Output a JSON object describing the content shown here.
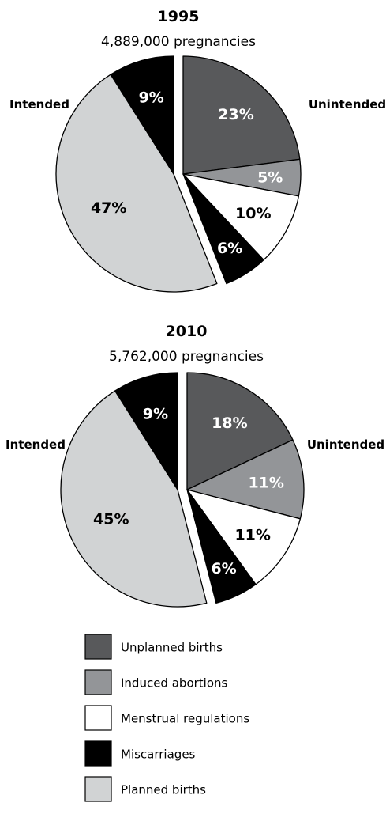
{
  "chart_data": [
    {
      "type": "pie",
      "title": "1995",
      "subtitle": "4,889,000 pregnancies",
      "group_labels": {
        "unintended": "Unintended",
        "intended": "Intended"
      },
      "slices": [
        {
          "category": "Unplanned births",
          "group": "unintended",
          "value": 23,
          "label": "23%"
        },
        {
          "category": "Induced abortions",
          "group": "unintended",
          "value": 5,
          "label": "5%"
        },
        {
          "category": "Menstrual regulations",
          "group": "unintended",
          "value": 10,
          "label": "10%"
        },
        {
          "category": "Miscarriages",
          "group": "unintended",
          "value": 6,
          "label": "6%"
        },
        {
          "category": "Planned births",
          "group": "intended",
          "value": 47,
          "label": "47%"
        },
        {
          "category": "Miscarriages",
          "group": "intended",
          "value": 9,
          "label": "9%"
        }
      ]
    },
    {
      "type": "pie",
      "title": "2010",
      "subtitle": "5,762,000 pregnancies",
      "group_labels": {
        "unintended": "Unintended",
        "intended": "Intended"
      },
      "slices": [
        {
          "category": "Unplanned births",
          "group": "unintended",
          "value": 18,
          "label": "18%"
        },
        {
          "category": "Induced abortions",
          "group": "unintended",
          "value": 11,
          "label": "11%"
        },
        {
          "category": "Menstrual regulations",
          "group": "unintended",
          "value": 11,
          "label": "11%"
        },
        {
          "category": "Miscarriages",
          "group": "unintended",
          "value": 6,
          "label": "6%"
        },
        {
          "category": "Planned births",
          "group": "intended",
          "value": 45,
          "label": "45%"
        },
        {
          "category": "Miscarriages",
          "group": "intended",
          "value": 9,
          "label": "9%"
        }
      ]
    }
  ],
  "legend": {
    "placement": "bottom",
    "items": [
      {
        "label": "Unplanned births",
        "color": "#58595b"
      },
      {
        "label": "Induced abortions",
        "color": "#939598"
      },
      {
        "label": "Menstrual regulations",
        "color": "#ffffff"
      },
      {
        "label": "Miscarriages",
        "color": "#000000"
      },
      {
        "label": "Planned births",
        "color": "#d1d3d4"
      }
    ]
  }
}
